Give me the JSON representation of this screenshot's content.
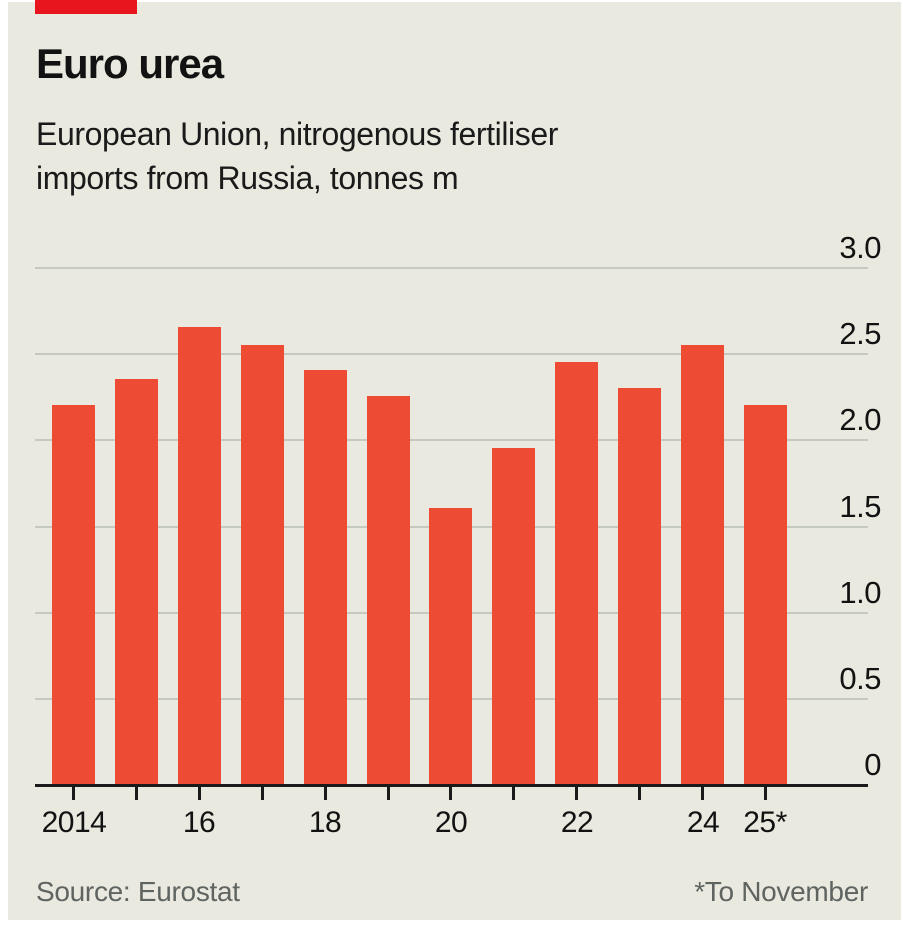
{
  "header": {
    "title": "Euro urea",
    "subtitle_line1": "European Union, nitrogenous fertiliser",
    "subtitle_line2": "imports from Russia, tonnes m"
  },
  "chart_data": {
    "type": "bar",
    "title": "Euro urea",
    "subtitle": "European Union, nitrogenous fertiliser imports from Russia, tonnes m",
    "unit": "tonnes m",
    "categories": [
      "2014",
      "2015",
      "2016",
      "2017",
      "2018",
      "2019",
      "2020",
      "2021",
      "2022",
      "2023",
      "2024",
      "2025"
    ],
    "values": [
      2.2,
      2.35,
      2.65,
      2.55,
      2.4,
      2.25,
      1.6,
      1.95,
      2.45,
      2.3,
      2.55,
      2.2
    ],
    "x_tick_labels": [
      {
        "index": 0,
        "label": "2014"
      },
      {
        "index": 2,
        "label": "16"
      },
      {
        "index": 4,
        "label": "18"
      },
      {
        "index": 6,
        "label": "20"
      },
      {
        "index": 8,
        "label": "22"
      },
      {
        "index": 10,
        "label": "24"
      },
      {
        "index": 11,
        "label": "25*"
      }
    ],
    "y_ticks": [
      0,
      0.5,
      1.0,
      1.5,
      2.0,
      2.5,
      3.0
    ],
    "y_tick_labels": [
      "0",
      "0.5",
      "1.0",
      "1.5",
      "2.0",
      "2.5",
      "3.0"
    ],
    "ylim": [
      0,
      3.0
    ],
    "grid": true,
    "legend": false,
    "y_axis_side": "right"
  },
  "colors": {
    "background": "#E9E9E0",
    "brand_tab": "#E8141E",
    "bar": "#EE4B35",
    "gridline": "#C5C9C0",
    "axis": "#1A1A1A",
    "text": "#121212",
    "muted": "#5F6460"
  },
  "footer": {
    "source": "Source: Eurostat",
    "note": "*To November"
  }
}
